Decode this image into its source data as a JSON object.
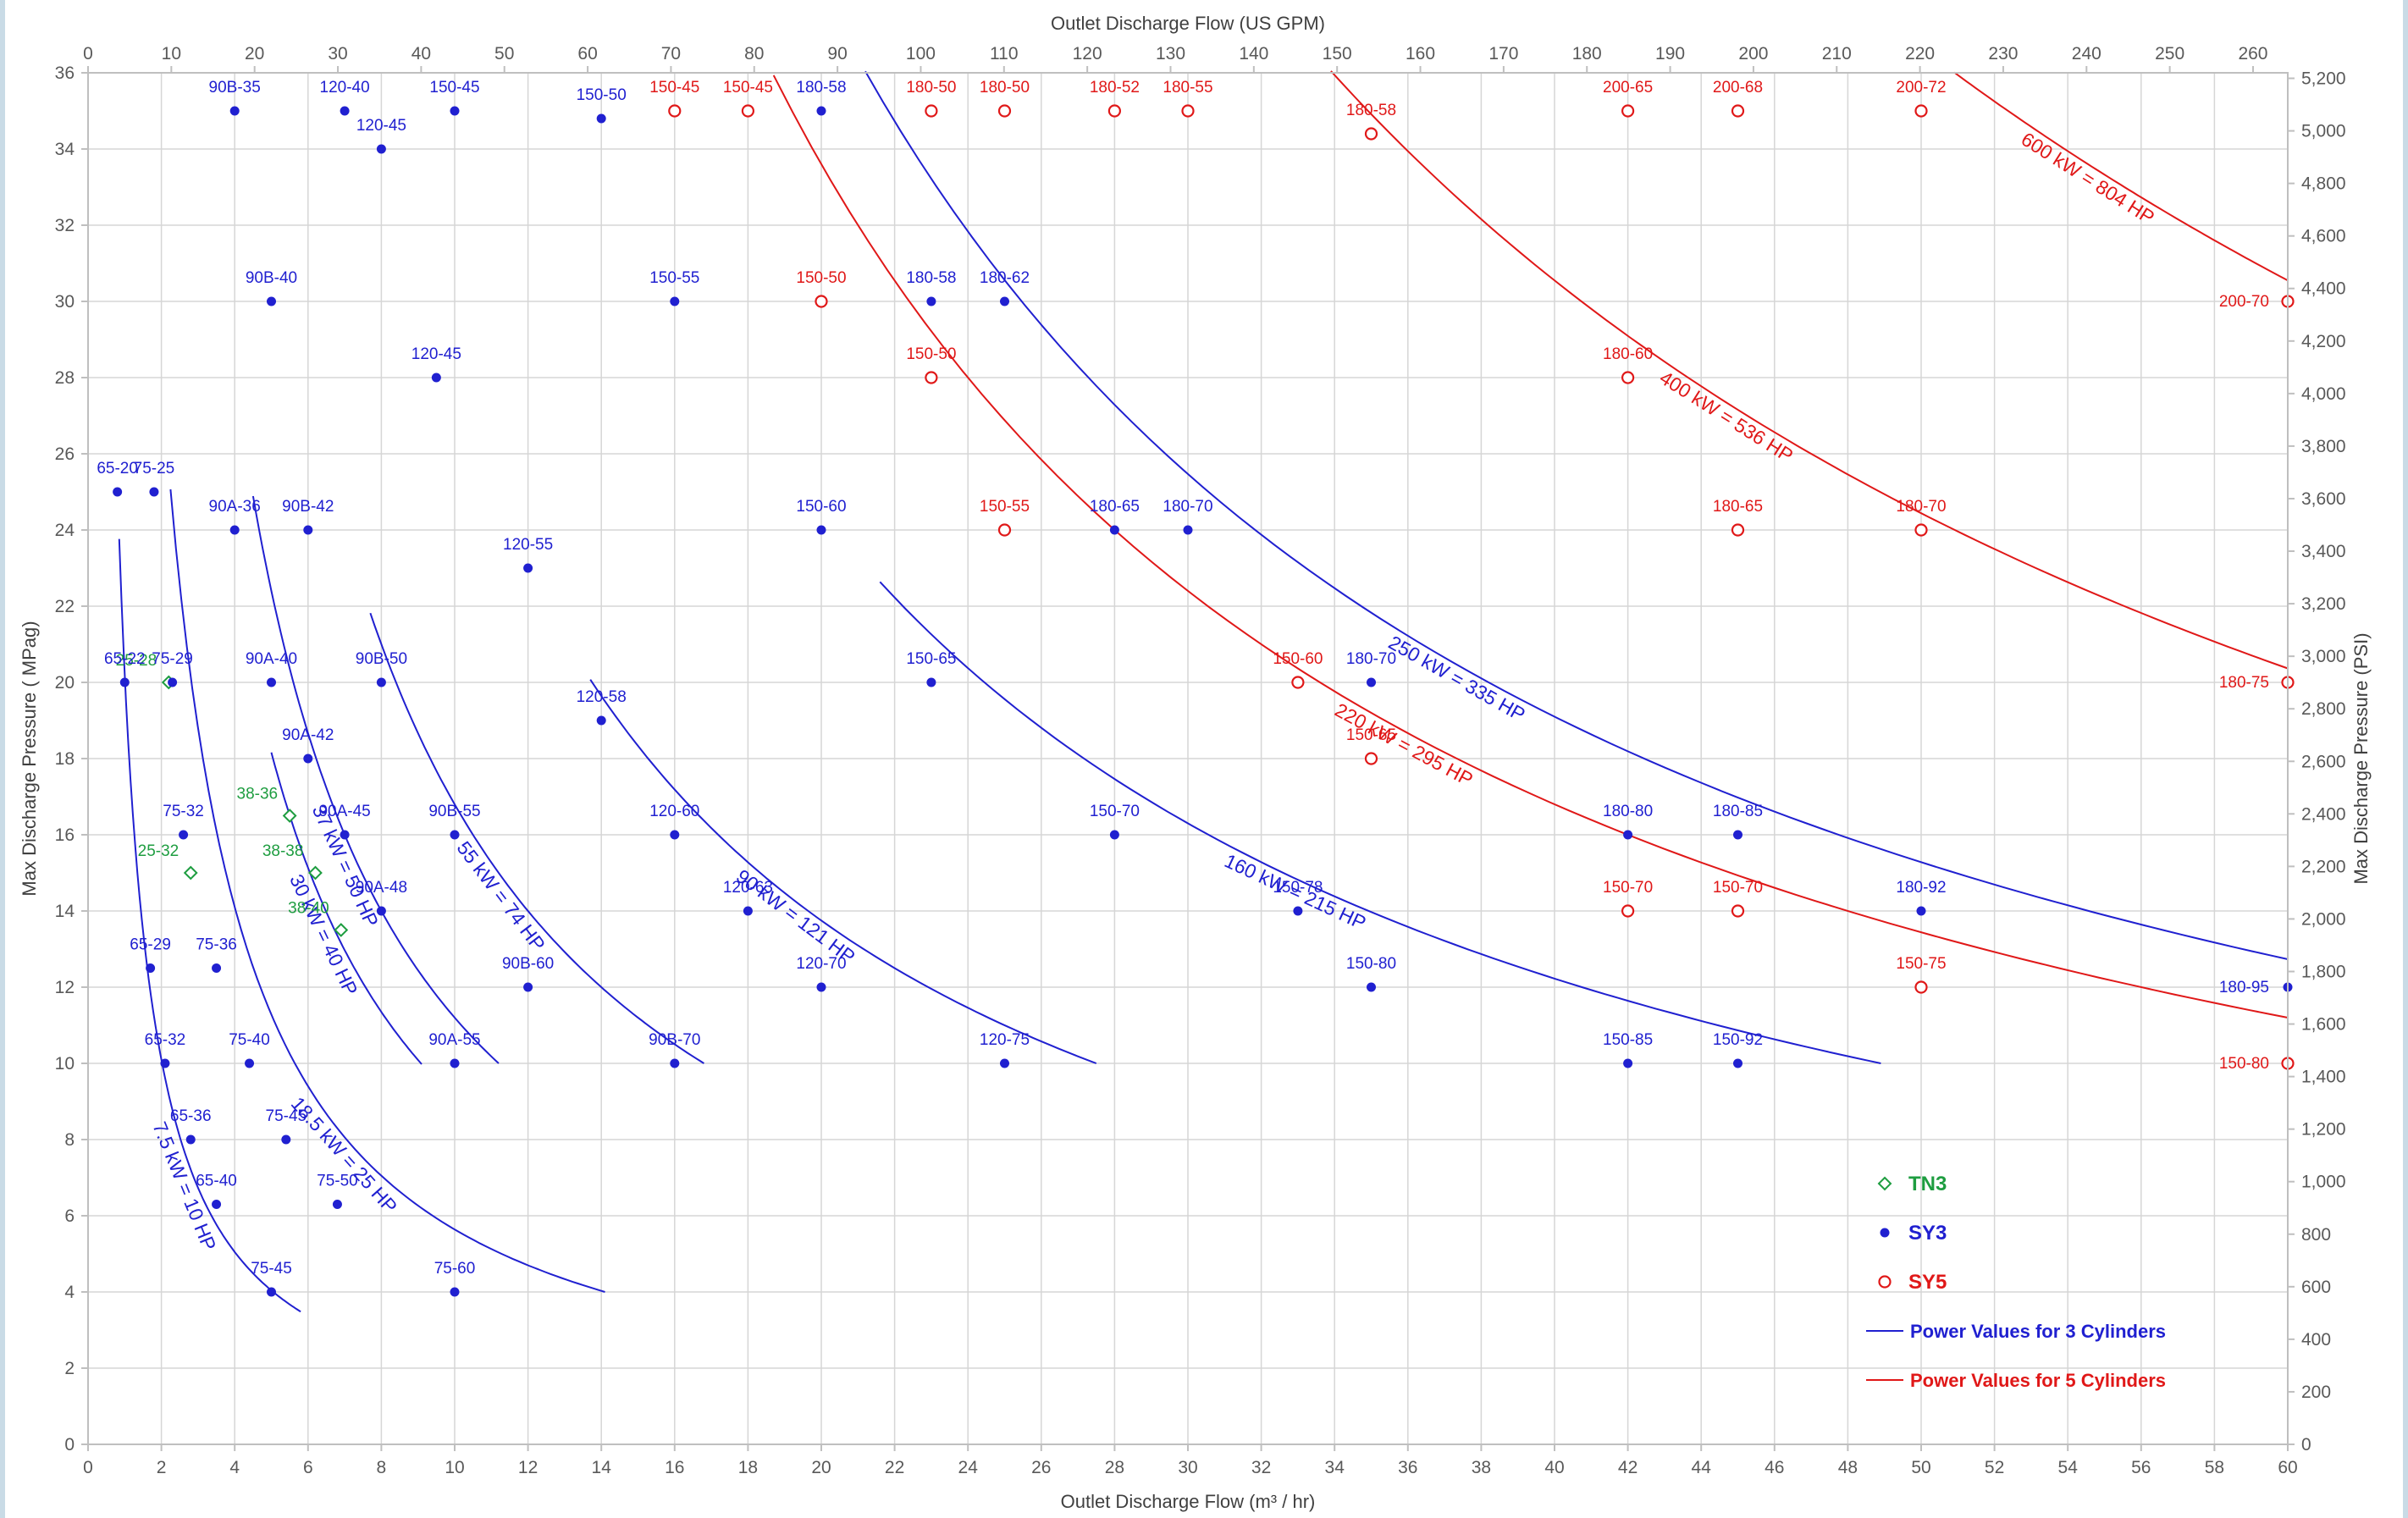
{
  "chart_data": {
    "type": "scatter",
    "title": "",
    "xlabel": "Outlet Discharge Flow (m³ / hr)",
    "x2label": "Outlet Discharge Flow (US GPM)",
    "ylabel": "Max Discharge Pressure ( MPag)",
    "y2label": "Max Discharge Pressure (PSI)",
    "xlim": [
      0,
      60
    ],
    "ylim": [
      0,
      36
    ],
    "x2lim": [
      0,
      264.17
    ],
    "y2lim": [
      0,
      5221
    ],
    "x_ticks": [
      0,
      2,
      4,
      6,
      8,
      10,
      12,
      14,
      16,
      18,
      20,
      22,
      24,
      26,
      28,
      30,
      32,
      34,
      36,
      38,
      40,
      42,
      44,
      46,
      48,
      50,
      52,
      54,
      56,
      58,
      60
    ],
    "y_ticks": [
      0,
      2,
      4,
      6,
      8,
      10,
      12,
      14,
      16,
      18,
      20,
      22,
      24,
      26,
      28,
      30,
      32,
      34,
      36
    ],
    "x2_ticks": [
      0,
      10,
      20,
      30,
      40,
      50,
      60,
      70,
      80,
      90,
      100,
      110,
      120,
      130,
      140,
      150,
      160,
      170,
      180,
      190,
      200,
      210,
      220,
      230,
      240,
      250,
      260
    ],
    "y2_ticks": [
      "0",
      "200",
      "400",
      "600",
      "800",
      "1,000",
      "1,200",
      "1,400",
      "1,600",
      "1,800",
      "2,000",
      "2,200",
      "2,400",
      "2,600",
      "2,800",
      "3,000",
      "3,200",
      "3,400",
      "3,600",
      "3,800",
      "4,000",
      "4,200",
      "4,400",
      "4,600",
      "4,800",
      "5,000",
      "5,200"
    ],
    "grid": true,
    "legend_position": "bottom-right",
    "legend": [
      {
        "label": "TN3",
        "marker": "diamond-open",
        "color": "#1e9d40"
      },
      {
        "label": "SY3",
        "marker": "dot-filled",
        "color": "#2020d0"
      },
      {
        "label": "SY5",
        "marker": "circle-open",
        "color": "#e01818"
      },
      {
        "label": "Power Values for 3 Cylinders",
        "marker": "line",
        "color": "#2020d0"
      },
      {
        "label": "Power Values for 5 Cylinders",
        "marker": "line",
        "color": "#e01818"
      }
    ],
    "series": [
      {
        "name": "TN3",
        "color": "#1e9d40",
        "points": [
          {
            "x": 2.2,
            "y": 20,
            "label": "25-28"
          },
          {
            "x": 2.8,
            "y": 15,
            "label": "25-32"
          },
          {
            "x": 5.5,
            "y": 16.5,
            "label": "38-36"
          },
          {
            "x": 6.2,
            "y": 15,
            "label": "38-38"
          },
          {
            "x": 6.9,
            "y": 13.5,
            "label": "38-40"
          }
        ]
      },
      {
        "name": "SY3",
        "color": "#2020d0",
        "points": [
          {
            "x": 0.8,
            "y": 25,
            "label": "65-20"
          },
          {
            "x": 1.0,
            "y": 20,
            "label": "65-22"
          },
          {
            "x": 1.7,
            "y": 12.5,
            "label": "65-29"
          },
          {
            "x": 2.1,
            "y": 10,
            "label": "65-32"
          },
          {
            "x": 2.8,
            "y": 8,
            "label": "65-36"
          },
          {
            "x": 3.5,
            "y": 6.3,
            "label": "65-40"
          },
          {
            "x": 1.8,
            "y": 25,
            "label": "75-25"
          },
          {
            "x": 2.3,
            "y": 20,
            "label": "75-29"
          },
          {
            "x": 2.6,
            "y": 16,
            "label": "75-32"
          },
          {
            "x": 3.5,
            "y": 12.5,
            "label": "75-36"
          },
          {
            "x": 4.4,
            "y": 10,
            "label": "75-40"
          },
          {
            "x": 5.4,
            "y": 8,
            "label": "75-45"
          },
          {
            "x": 5.0,
            "y": 4,
            "label": "75-45"
          },
          {
            "x": 6.8,
            "y": 6.3,
            "label": "75-50"
          },
          {
            "x": 10.0,
            "y": 4,
            "label": "75-60"
          },
          {
            "x": 4.0,
            "y": 24,
            "label": "90A-36"
          },
          {
            "x": 5.0,
            "y": 20,
            "label": "90A-40"
          },
          {
            "x": 6.0,
            "y": 18,
            "label": "90A-42"
          },
          {
            "x": 7.0,
            "y": 16,
            "label": "90A-45"
          },
          {
            "x": 8.0,
            "y": 14,
            "label": "90A-48"
          },
          {
            "x": 10.0,
            "y": 10,
            "label": "90A-55"
          },
          {
            "x": 4.0,
            "y": 35,
            "label": "90B-35"
          },
          {
            "x": 5.0,
            "y": 30,
            "label": "90B-40"
          },
          {
            "x": 6.0,
            "y": 24,
            "label": "90B-42"
          },
          {
            "x": 8.0,
            "y": 20,
            "label": "90B-50"
          },
          {
            "x": 10.0,
            "y": 16,
            "label": "90B-55"
          },
          {
            "x": 12.0,
            "y": 12,
            "label": "90B-60"
          },
          {
            "x": 16.0,
            "y": 10,
            "label": "90B-70"
          },
          {
            "x": 7.0,
            "y": 35,
            "label": "120-40"
          },
          {
            "x": 8.0,
            "y": 34,
            "label": "120-45"
          },
          {
            "x": 9.5,
            "y": 28,
            "label": "120-45"
          },
          {
            "x": 12.0,
            "y": 23,
            "label": "120-55"
          },
          {
            "x": 14.0,
            "y": 19,
            "label": "120-58"
          },
          {
            "x": 16.0,
            "y": 16,
            "label": "120-60"
          },
          {
            "x": 18.0,
            "y": 14,
            "label": "120-63"
          },
          {
            "x": 20.0,
            "y": 12,
            "label": "120-70"
          },
          {
            "x": 25.0,
            "y": 10,
            "label": "120-75"
          },
          {
            "x": 10.0,
            "y": 35,
            "label": "150-45"
          },
          {
            "x": 14.0,
            "y": 34.8,
            "label": "150-50"
          },
          {
            "x": 16.0,
            "y": 30,
            "label": "150-55"
          },
          {
            "x": 20.0,
            "y": 24,
            "label": "150-60"
          },
          {
            "x": 23.0,
            "y": 20,
            "label": "150-65"
          },
          {
            "x": 28.0,
            "y": 16,
            "label": "150-70"
          },
          {
            "x": 33.0,
            "y": 14,
            "label": "150-78"
          },
          {
            "x": 35.0,
            "y": 12,
            "label": "150-80"
          },
          {
            "x": 42.0,
            "y": 10,
            "label": "150-85"
          },
          {
            "x": 45.0,
            "y": 10,
            "label": "150-92"
          },
          {
            "x": 20.0,
            "y": 35,
            "label": "180-58"
          },
          {
            "x": 23.0,
            "y": 30,
            "label": "180-58"
          },
          {
            "x": 25.0,
            "y": 30,
            "label": "180-62"
          },
          {
            "x": 28.0,
            "y": 24,
            "label": "180-65"
          },
          {
            "x": 30.0,
            "y": 24,
            "label": "180-70"
          },
          {
            "x": 35.0,
            "y": 20,
            "label": "180-70"
          },
          {
            "x": 42.0,
            "y": 16,
            "label": "180-80"
          },
          {
            "x": 45.0,
            "y": 16,
            "label": "180-85"
          },
          {
            "x": 50.0,
            "y": 14,
            "label": "180-92"
          },
          {
            "x": 60.0,
            "y": 12,
            "label": "180-95"
          }
        ]
      },
      {
        "name": "SY5",
        "color": "#e01818",
        "points": [
          {
            "x": 16.0,
            "y": 35,
            "label": "150-45"
          },
          {
            "x": 18.0,
            "y": 35,
            "label": "150-45"
          },
          {
            "x": 20.0,
            "y": 30,
            "label": "150-50"
          },
          {
            "x": 23.0,
            "y": 28,
            "label": "150-50"
          },
          {
            "x": 25.0,
            "y": 24,
            "label": "150-55"
          },
          {
            "x": 33.0,
            "y": 20,
            "label": "150-60"
          },
          {
            "x": 35.0,
            "y": 18,
            "label": "150-65"
          },
          {
            "x": 42.0,
            "y": 14,
            "label": "150-70"
          },
          {
            "x": 45.0,
            "y": 14,
            "label": "150-70"
          },
          {
            "x": 50.0,
            "y": 12,
            "label": "150-75"
          },
          {
            "x": 60.0,
            "y": 10,
            "label": "150-80"
          },
          {
            "x": 23.0,
            "y": 35,
            "label": "180-50"
          },
          {
            "x": 25.0,
            "y": 35,
            "label": "180-50"
          },
          {
            "x": 28.0,
            "y": 35,
            "label": "180-52"
          },
          {
            "x": 30.0,
            "y": 35,
            "label": "180-55"
          },
          {
            "x": 35.0,
            "y": 34.4,
            "label": "180-58"
          },
          {
            "x": 42.0,
            "y": 28,
            "label": "180-60"
          },
          {
            "x": 45.0,
            "y": 24,
            "label": "180-65"
          },
          {
            "x": 50.0,
            "y": 24,
            "label": "180-70"
          },
          {
            "x": 60.0,
            "y": 20,
            "label": "180-75"
          },
          {
            "x": 42.0,
            "y": 35,
            "label": "200-65"
          },
          {
            "x": 45.0,
            "y": 35,
            "label": "200-68"
          },
          {
            "x": 50.0,
            "y": 35,
            "label": "200-72"
          },
          {
            "x": 60.0,
            "y": 30,
            "label": "200-70"
          }
        ]
      }
    ],
    "power_curves": [
      {
        "label": "7.5 kW = 10 HP",
        "k": 20.2,
        "color": "#2020d0",
        "x0": 0.85,
        "x1": 5.8
      },
      {
        "label": "18.5 kW = 25 HP",
        "k": 56.4,
        "color": "#2020d0",
        "x0": 2.25,
        "x1": 14.1
      },
      {
        "label": "30 kW = 40 HP",
        "k": 90.8,
        "color": "#2020d0",
        "x0": 5.0,
        "x1": 9.1
      },
      {
        "label": "37 kW = 50 HP",
        "k": 112,
        "color": "#2020d0",
        "x0": 4.5,
        "x1": 11.2
      },
      {
        "label": "55 kW = 74 HP",
        "k": 168,
        "color": "#2020d0",
        "x0": 7.7,
        "x1": 16.8
      },
      {
        "label": "90 kW = 121 HP",
        "k": 275,
        "color": "#2020d0",
        "x0": 13.7,
        "x1": 27.5
      },
      {
        "label": "160 kW = 215 HP",
        "k": 489,
        "color": "#2020d0",
        "x0": 21.6,
        "x1": 48.9
      },
      {
        "label": "250 kW = 335 HP",
        "k": 764,
        "color": "#2020d0",
        "x0": 21.2,
        "x1": 60
      },
      {
        "label": "220 kW = 295 HP",
        "k": 672,
        "color": "#e01818",
        "x0": 18.7,
        "x1": 60
      },
      {
        "label": "400 kW = 536 HP",
        "k": 1222,
        "color": "#e01818",
        "x0": 33.9,
        "x1": 60
      },
      {
        "label": "600 kW = 804 HP",
        "k": 1833,
        "color": "#e01818",
        "x0": 50.9,
        "x1": 60
      }
    ]
  }
}
